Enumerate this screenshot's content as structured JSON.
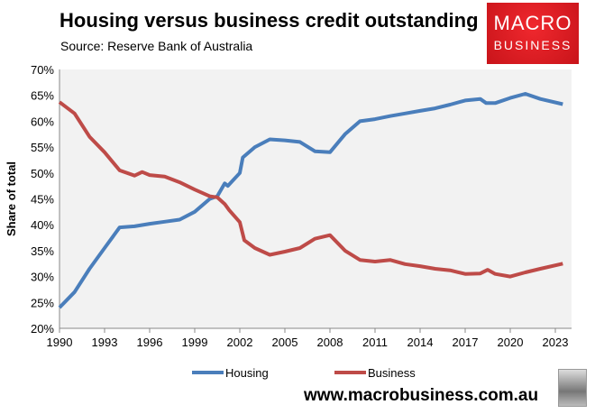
{
  "header": {
    "title": "Housing versus business credit outstanding",
    "source": "Source: Reserve Bank of Australia"
  },
  "logo": {
    "line1": "MACRO",
    "line2": "BUSINESS"
  },
  "footer": {
    "url": "www.macrobusiness.com.au"
  },
  "chart_data": {
    "type": "line",
    "title": "Housing versus business credit outstanding",
    "ylabel": "Share of total",
    "xlabel": "",
    "xlim": [
      1990,
      2023.7
    ],
    "ylim": [
      20,
      70
    ],
    "xticks": [
      1990,
      1993,
      1996,
      1999,
      2002,
      2005,
      2008,
      2011,
      2014,
      2017,
      2020,
      2023
    ],
    "yticks": [
      20,
      25,
      30,
      35,
      40,
      45,
      50,
      55,
      60,
      65,
      70
    ],
    "ytick_format": "%",
    "grid": false,
    "legend": "bottom",
    "background": "#f2f2f2",
    "series": [
      {
        "name": "Housing",
        "color": "#4a7ebb",
        "x": [
          1990,
          1991,
          1992,
          1993,
          1994,
          1995,
          1996,
          1997,
          1998,
          1999,
          2000,
          2000.5,
          2001,
          2001.2,
          2002,
          2002.2,
          2003,
          2004,
          2005,
          2006,
          2007,
          2008,
          2009,
          2010,
          2011,
          2012,
          2013,
          2014,
          2015,
          2016,
          2017,
          2018,
          2018.4,
          2019,
          2020,
          2021,
          2022,
          2023.5
        ],
        "y": [
          24,
          27,
          31.5,
          35.5,
          39.5,
          39.7,
          40.2,
          40.6,
          41,
          42.5,
          45,
          45.5,
          48,
          47.5,
          50,
          53,
          55,
          56.5,
          56.3,
          56,
          54.2,
          54,
          57.5,
          60,
          60.4,
          61,
          61.5,
          62,
          62.5,
          63.2,
          64,
          64.3,
          63.5,
          63.5,
          64.5,
          65.3,
          64.3,
          63.3
        ]
      },
      {
        "name": "Business",
        "color": "#be4b48",
        "x": [
          1990,
          1991,
          1992,
          1993,
          1994,
          1995,
          1995.5,
          1996,
          1997,
          1998,
          1999,
          2000,
          2000.5,
          2001,
          2001.3,
          2002,
          2002.3,
          2003,
          2004,
          2005,
          2006,
          2007,
          2008,
          2009,
          2010,
          2011,
          2012,
          2013,
          2014,
          2015,
          2016,
          2017,
          2018,
          2018.5,
          2019,
          2020,
          2021,
          2022,
          2023.5
        ],
        "y": [
          63.7,
          61.5,
          57,
          54,
          50.5,
          49.5,
          50.2,
          49.6,
          49.3,
          48.2,
          46.8,
          45.5,
          45.3,
          44,
          42.8,
          40.5,
          37,
          35.5,
          34.2,
          34.8,
          35.5,
          37.3,
          38,
          35,
          33.2,
          32.9,
          33.2,
          32.4,
          32,
          31.5,
          31.2,
          30.5,
          30.6,
          31.3,
          30.5,
          30,
          30.8,
          31.5,
          32.5
        ]
      }
    ]
  }
}
